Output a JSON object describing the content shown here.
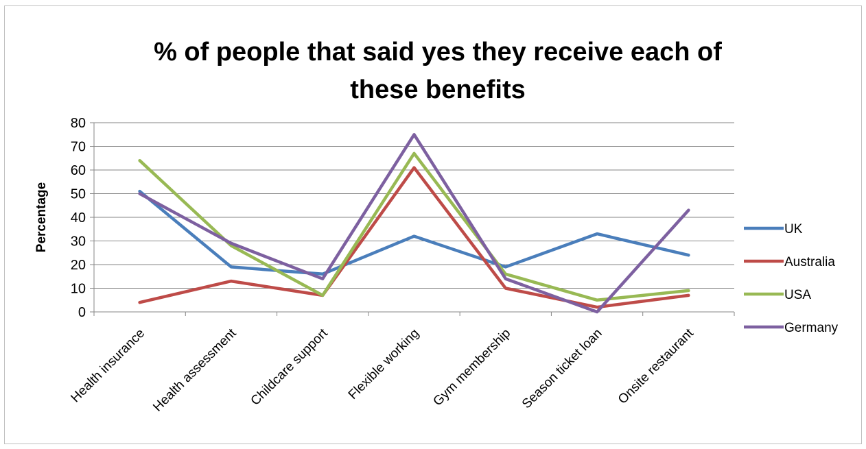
{
  "chart_data": {
    "type": "line",
    "title_lines": [
      "% of people that said yes they receive each of",
      "these benefits"
    ],
    "xlabel": "",
    "ylabel": "Percentage",
    "ylim": [
      0,
      80
    ],
    "yticks": [
      0,
      10,
      20,
      30,
      40,
      50,
      60,
      70,
      80
    ],
    "categories": [
      "Health insurance",
      "Health assessment",
      "Childcare support",
      "Flexible working",
      "Gym membership",
      "Season ticket loan",
      "Onsite restaurant"
    ],
    "grid": true,
    "legend_position": "right",
    "series": [
      {
        "name": "UK",
        "color": "#4a7ebb",
        "values": [
          51,
          19,
          16,
          32,
          19,
          33,
          24
        ]
      },
      {
        "name": "Australia",
        "color": "#be4b48",
        "values": [
          4,
          13,
          7,
          61,
          10,
          2,
          7
        ]
      },
      {
        "name": "USA",
        "color": "#98b954",
        "values": [
          64,
          28,
          7,
          67,
          16,
          5,
          9
        ]
      },
      {
        "name": "Germany",
        "color": "#7d60a0",
        "values": [
          50,
          29,
          14,
          75,
          14,
          0,
          43
        ]
      }
    ]
  }
}
